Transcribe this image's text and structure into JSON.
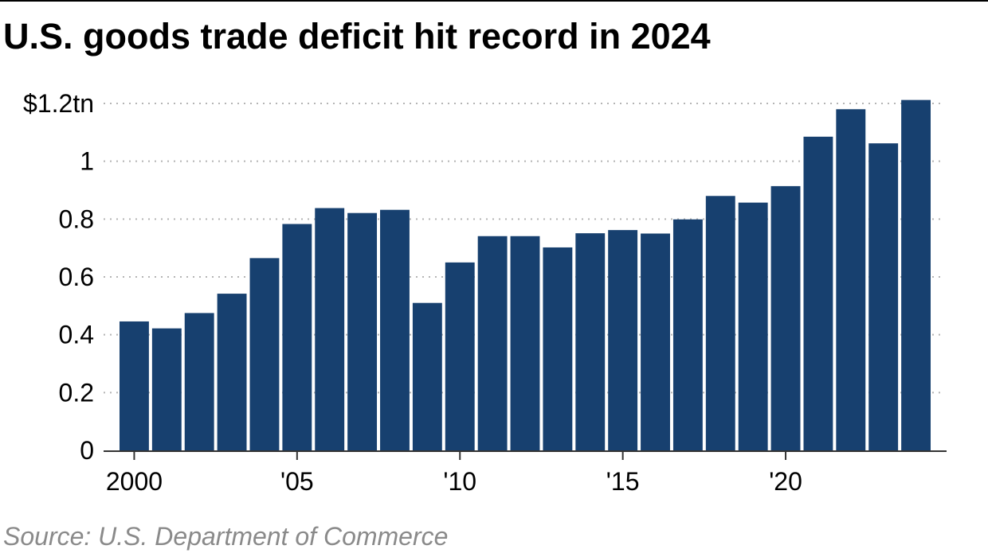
{
  "title": "U.S. goods trade deficit hit record in 2024",
  "source": "Source: U.S. Department of Commerce",
  "colors": {
    "bar": "#17406f",
    "grid": "#b4b4b4",
    "axis": "#333333",
    "text": "#000000",
    "source": "#8a8a8a"
  },
  "chart_data": {
    "type": "bar",
    "title": "U.S. goods trade deficit hit record in 2024",
    "xlabel": "",
    "ylabel": "",
    "categories": [
      "2000",
      "2001",
      "2002",
      "2003",
      "2004",
      "2005",
      "2006",
      "2007",
      "2008",
      "2009",
      "2010",
      "2011",
      "2012",
      "2013",
      "2014",
      "2015",
      "2016",
      "2017",
      "2018",
      "2019",
      "2020",
      "2021",
      "2022",
      "2023",
      "2024"
    ],
    "values": [
      0.446,
      0.422,
      0.475,
      0.542,
      0.665,
      0.783,
      0.838,
      0.821,
      0.832,
      0.51,
      0.65,
      0.741,
      0.741,
      0.702,
      0.751,
      0.762,
      0.75,
      0.799,
      0.88,
      0.857,
      0.914,
      1.085,
      1.18,
      1.062,
      1.212
    ],
    "ylim": [
      0,
      1.2
    ],
    "yticks": [
      0,
      0.2,
      0.4,
      0.6,
      0.8,
      1.0,
      1.2
    ],
    "ytick_labels": [
      "0",
      "0.2",
      "0.4",
      "0.6",
      "0.8",
      "1",
      "$1.2tn"
    ],
    "xtick_labels": [
      {
        "category": "2000",
        "label": "2000"
      },
      {
        "category": "2005",
        "label": "'05"
      },
      {
        "category": "2010",
        "label": "'10"
      },
      {
        "category": "2015",
        "label": "'15"
      },
      {
        "category": "2020",
        "label": "'20"
      }
    ],
    "grid": "dotted horizontal",
    "legend": "none"
  }
}
